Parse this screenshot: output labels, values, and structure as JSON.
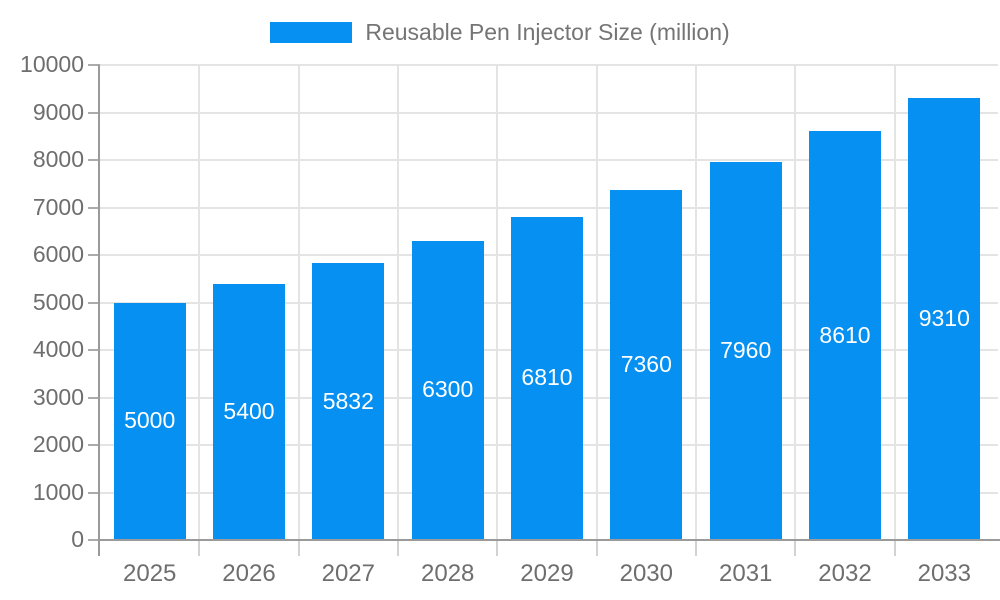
{
  "legend": {
    "items": [
      {
        "label": "Reusable Pen Injector Size (million)",
        "color": "#0690f2"
      }
    ]
  },
  "chart_data": {
    "type": "bar",
    "title": "",
    "categories": [
      "2025",
      "2026",
      "2027",
      "2028",
      "2029",
      "2030",
      "2031",
      "2032",
      "2033"
    ],
    "series": [
      {
        "name": "Reusable Pen Injector Size (million)",
        "values": [
          5000,
          5400,
          5832,
          6300,
          6810,
          7360,
          7960,
          8610,
          9310
        ],
        "color": "#0690f2"
      }
    ],
    "xlabel": "",
    "ylabel": "",
    "ylim": [
      0,
      10000
    ],
    "ytick_interval": 1000,
    "yticks": [
      0,
      1000,
      2000,
      3000,
      4000,
      5000,
      6000,
      7000,
      8000,
      9000,
      10000
    ],
    "grid": true,
    "legend_position": "top",
    "value_labels_position": "inside-middle",
    "value_label_color": "#ffffff"
  },
  "style": {
    "bar_color": "#0690f2",
    "grid_color": "#e4e4e4",
    "axis_line_color": "#9a9a9a",
    "x_tick_color": "#d2d2d2",
    "y_tick_color": "#ababab",
    "axis_text_color": "#6e6e6e",
    "legend_text_color": "#757575",
    "background_color": "#ffffff"
  }
}
